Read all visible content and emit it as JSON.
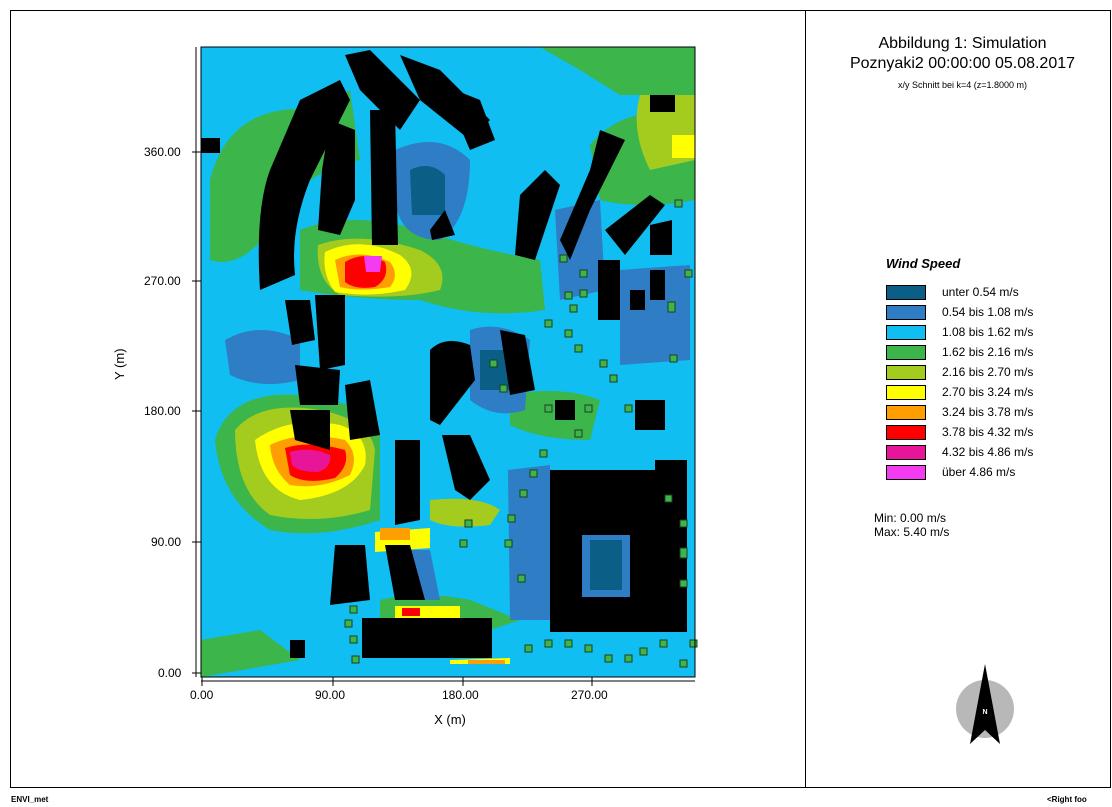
{
  "title": {
    "line1": "Abbildung 1: Simulation",
    "line2": "Poznyaki2 00:00:00 05.08.2017",
    "subtitle": "x/y Schnitt bei k=4 (z=1.8000 m)"
  },
  "footer": {
    "left": "ENVI_met",
    "right": "<Right foo"
  },
  "stats": {
    "min": "Min: 0.00 m/s",
    "max": "Max: 5.40 m/s"
  },
  "north": {
    "label": "N"
  },
  "legend": {
    "title": "Wind Speed",
    "items": [
      {
        "label": "unter 0.54 m/s",
        "color": "#0b5f86"
      },
      {
        "label": "0.54 bis 1.08 m/s",
        "color": "#2f7dc4"
      },
      {
        "label": "1.08 bis 1.62 m/s",
        "color": "#10bef2"
      },
      {
        "label": "1.62 bis 2.16 m/s",
        "color": "#3cb54a"
      },
      {
        "label": "2.16 bis 2.70 m/s",
        "color": "#a3cc1f"
      },
      {
        "label": "2.70 bis 3.24 m/s",
        "color": "#ffff00"
      },
      {
        "label": "3.24 bis 3.78 m/s",
        "color": "#ff9e00"
      },
      {
        "label": "3.78 bis 4.32 m/s",
        "color": "#ff0000"
      },
      {
        "label": "4.32 bis 4.86 m/s",
        "color": "#e8149a"
      },
      {
        "label": "über 4.86 m/s",
        "color": "#f33cf0"
      }
    ]
  },
  "chart_data": {
    "type": "heatmap",
    "xlabel": "X (m)",
    "ylabel": "Y (m)",
    "x_ticks": [
      "0.00",
      "90.00",
      "180.00",
      "270.00"
    ],
    "y_ticks": [
      "0.00",
      "90.00",
      "180.00",
      "270.00",
      "360.00"
    ],
    "xlim": [
      0,
      340
    ],
    "ylim": [
      0,
      428
    ],
    "units": "m/s",
    "value_range": [
      0.0,
      5.4
    ]
  }
}
